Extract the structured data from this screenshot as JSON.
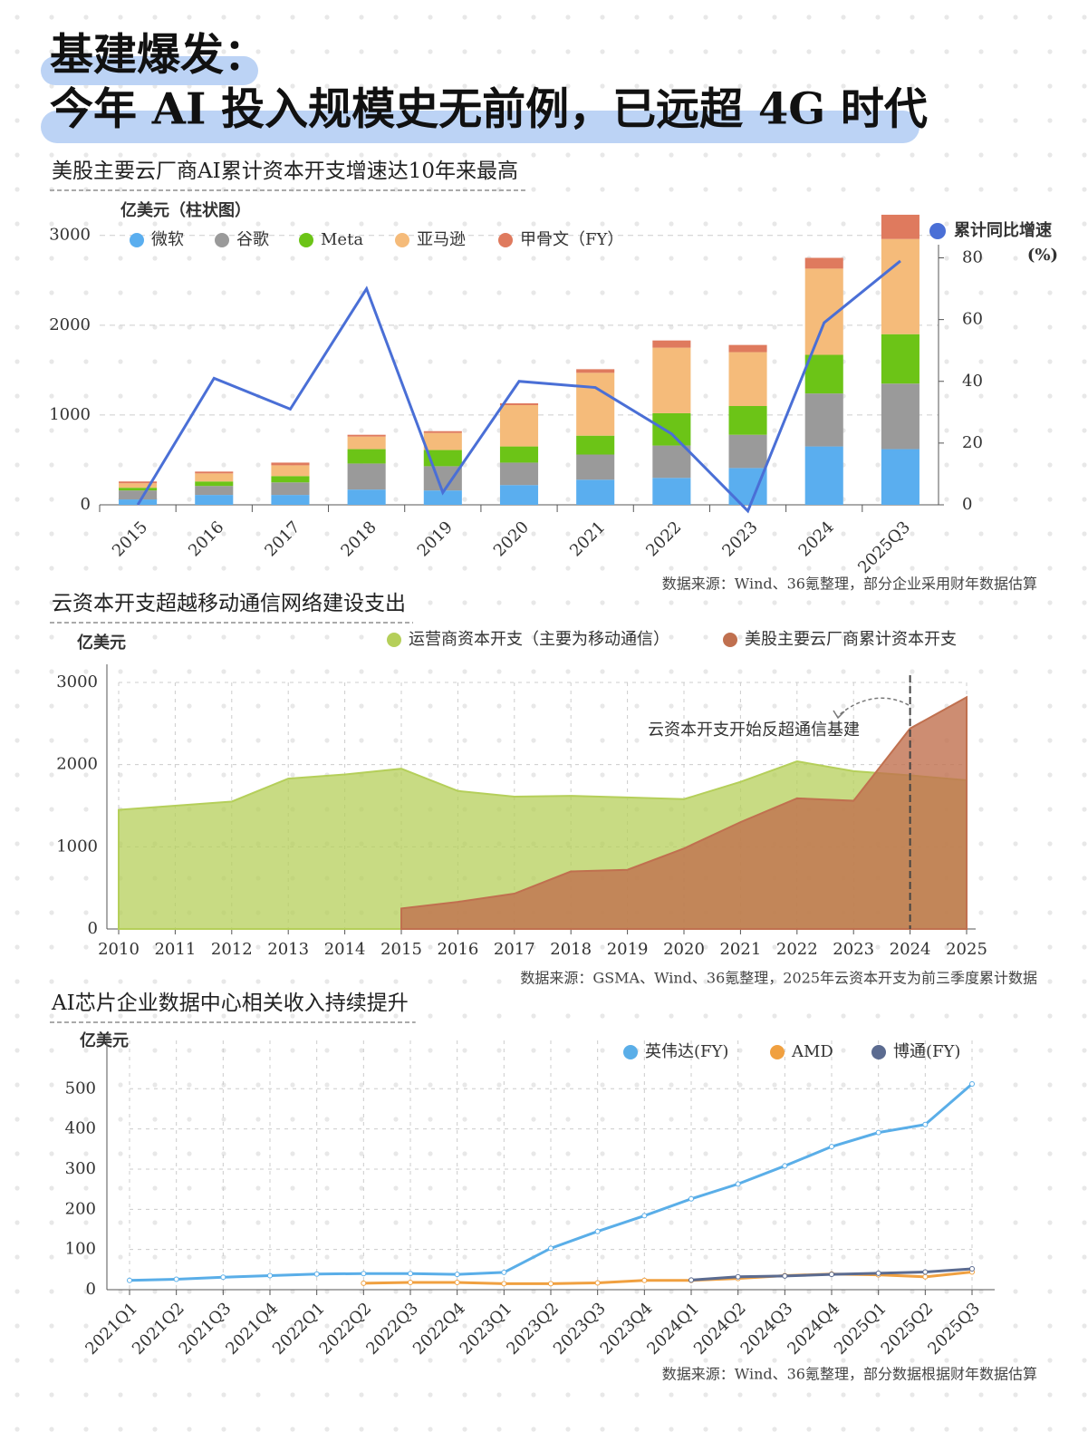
{
  "header": {
    "title_line1": "基建爆发：",
    "title_line2": "今年 AI 投入规模史无前例，已远超 4G 时代"
  },
  "chart_data": [
    {
      "type": "bar",
      "stacked": true,
      "title": "美股主要云厂商AI累计资本开支增速达10年来最高",
      "y_axis_label": "亿美元（柱状图）",
      "y2_axis_label": "(%)",
      "categories": [
        "2015",
        "2016",
        "2017",
        "2018",
        "2019",
        "2020",
        "2021",
        "2022",
        "2023",
        "2024",
        "2025Q3"
      ],
      "series": [
        {
          "name": "微软",
          "color": "#5aaeef",
          "values": [
            60,
            110,
            110,
            170,
            160,
            220,
            280,
            300,
            410,
            650,
            620
          ]
        },
        {
          "name": "谷歌",
          "color": "#9a9a9a",
          "values": [
            100,
            100,
            140,
            290,
            270,
            250,
            280,
            360,
            370,
            590,
            730
          ]
        },
        {
          "name": "Meta",
          "color": "#6cc417",
          "values": [
            30,
            50,
            70,
            160,
            180,
            180,
            210,
            360,
            320,
            430,
            550
          ]
        },
        {
          "name": "亚马逊",
          "color": "#f5bb7a",
          "values": [
            50,
            90,
            120,
            140,
            190,
            460,
            700,
            730,
            600,
            960,
            1060
          ]
        },
        {
          "name": "甲骨文（FY）",
          "color": "#df7a5e",
          "values": [
            20,
            20,
            30,
            20,
            20,
            20,
            40,
            80,
            80,
            120,
            270
          ]
        },
        {
          "name": "累计同比增速",
          "color": "#4a6fd6",
          "type": "line",
          "axis": "y2",
          "values": [
            0,
            41,
            31,
            70,
            4,
            40,
            38,
            23,
            -2,
            59,
            79
          ]
        }
      ],
      "ylim": [
        0,
        3300
      ],
      "yticks": [
        0,
        1000,
        2000,
        3000
      ],
      "y2lim": [
        0,
        96
      ],
      "y2ticks": [
        0,
        20,
        40,
        60,
        80
      ],
      "grid": true,
      "source": "数据来源：Wind、36氪整理，部分企业采用财年数据估算"
    },
    {
      "type": "area",
      "title": "云资本开支超越移动通信网络建设支出",
      "y_axis_label": "亿美元",
      "x": [
        2010,
        2011,
        2012,
        2013,
        2014,
        2015,
        2016,
        2017,
        2018,
        2019,
        2020,
        2021,
        2022,
        2023,
        2024,
        2025
      ],
      "series": [
        {
          "name": "运营商资本开支（主要为移动通信）",
          "color": "#b5cf5a",
          "values": [
            1450,
            1500,
            1550,
            1830,
            1880,
            1950,
            1680,
            1610,
            1620,
            1600,
            1580,
            1790,
            2040,
            1920,
            1870,
            1810
          ]
        },
        {
          "name": "美股主要云厂商累计资本开支",
          "color": "#c0704f",
          "values": [
            null,
            null,
            null,
            null,
            null,
            250,
            330,
            430,
            700,
            720,
            980,
            1300,
            1590,
            1560,
            2440,
            2820
          ]
        }
      ],
      "xlim": [
        2010,
        2025
      ],
      "xticks": [
        2010,
        2011,
        2012,
        2013,
        2014,
        2015,
        2016,
        2017,
        2018,
        2019,
        2020,
        2021,
        2022,
        2023,
        2024,
        2025
      ],
      "ylim": [
        0,
        3000
      ],
      "yticks": [
        0,
        1000,
        2000,
        3000
      ],
      "grid": true,
      "annotation": {
        "text": "云资本开支开始反超通信基建",
        "x": 2024
      },
      "source": "数据来源：GSMA、Wind、36氪整理，2025年云资本开支为前三季度累计数据"
    },
    {
      "type": "line",
      "title": "AI芯片企业数据中心相关收入持续提升",
      "y_axis_label": "亿美元",
      "categories": [
        "2021Q1",
        "2021Q2",
        "2021Q3",
        "2021Q4",
        "2022Q1",
        "2022Q2",
        "2022Q3",
        "2022Q4",
        "2023Q1",
        "2023Q2",
        "2023Q3",
        "2023Q4",
        "2024Q1",
        "2024Q2",
        "2024Q3",
        "2024Q4",
        "2025Q1",
        "2025Q2",
        "2025Q3"
      ],
      "series": [
        {
          "name": "英伟达(FY)",
          "color": "#5aaee8",
          "values": [
            23,
            26,
            31,
            35,
            39,
            40,
            40,
            38,
            43,
            103,
            145,
            184,
            226,
            263,
            308,
            356,
            391,
            411,
            512
          ]
        },
        {
          "name": "AMD",
          "color": "#f0a040",
          "values": [
            null,
            null,
            null,
            null,
            null,
            16,
            18,
            18,
            15,
            15,
            17,
            23,
            23,
            28,
            35,
            39,
            37,
            32,
            44
          ]
        },
        {
          "name": "博通(FY)",
          "color": "#5b6b90",
          "values": [
            null,
            null,
            null,
            null,
            null,
            null,
            null,
            null,
            null,
            null,
            null,
            null,
            24,
            32,
            34,
            38,
            41,
            44,
            52
          ]
        }
      ],
      "ylim": [
        0,
        530
      ],
      "yticks": [
        0,
        100,
        200,
        300,
        400,
        500
      ],
      "grid": true,
      "source": "数据来源：Wind、36氪整理，部分数据根据财年数据估算"
    }
  ]
}
